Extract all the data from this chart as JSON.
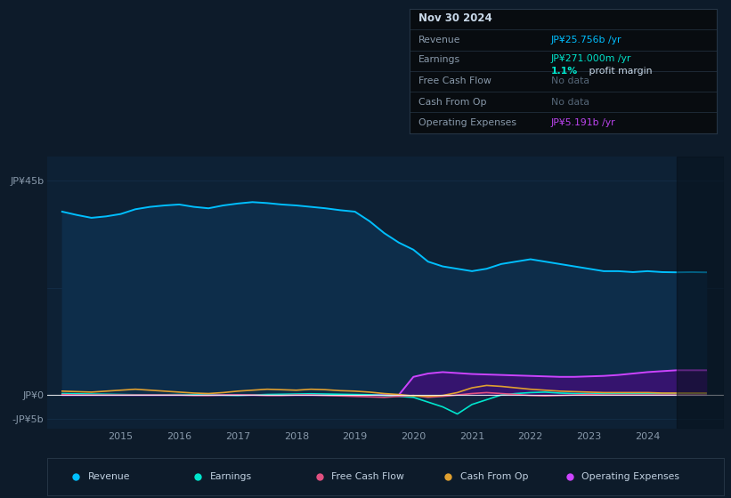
{
  "background_color": "#0d1b2a",
  "chart_area_color": "#0d2135",
  "title": "Nov 30 2024",
  "xlim_start": 2013.75,
  "xlim_end": 2025.3,
  "ylim_min": -7,
  "ylim_max": 50,
  "revenue_color": "#00bfff",
  "revenue_fill_color": "#0d2d4a",
  "earnings_color": "#00e5cc",
  "free_cash_flow_color": "#e05080",
  "cash_from_op_color": "#e0a030",
  "op_expenses_color": "#cc44ff",
  "op_expenses_fill_color": "#35146e",
  "text_color": "#8899aa",
  "grid_color": "#1a3a5a",
  "dark_overlay_start": 2024.5,
  "x_points": [
    2014.0,
    2014.25,
    2014.5,
    2014.75,
    2015.0,
    2015.25,
    2015.5,
    2015.75,
    2016.0,
    2016.25,
    2016.5,
    2016.75,
    2017.0,
    2017.25,
    2017.5,
    2017.75,
    2018.0,
    2018.25,
    2018.5,
    2018.75,
    2019.0,
    2019.25,
    2019.5,
    2019.75,
    2020.0,
    2020.25,
    2020.5,
    2020.75,
    2021.0,
    2021.25,
    2021.5,
    2021.75,
    2022.0,
    2022.25,
    2022.5,
    2022.75,
    2023.0,
    2023.25,
    2023.5,
    2023.75,
    2024.0,
    2024.25,
    2024.5,
    2024.75,
    2025.0
  ],
  "revenue": [
    38.5,
    37.8,
    37.2,
    37.5,
    38.0,
    39.0,
    39.5,
    39.8,
    40.0,
    39.5,
    39.2,
    39.8,
    40.2,
    40.5,
    40.3,
    40.0,
    39.8,
    39.5,
    39.2,
    38.8,
    38.5,
    36.5,
    34.0,
    32.0,
    30.5,
    28.0,
    27.0,
    26.5,
    26.0,
    26.5,
    27.5,
    28.0,
    28.5,
    28.0,
    27.5,
    27.0,
    26.5,
    26.0,
    26.0,
    25.8,
    26.0,
    25.8,
    25.756,
    25.8,
    25.756
  ],
  "earnings": [
    0.3,
    0.25,
    0.2,
    0.15,
    0.1,
    0.05,
    0.0,
    0.05,
    0.1,
    0.05,
    0.0,
    -0.05,
    -0.1,
    0.0,
    0.1,
    0.15,
    0.2,
    0.25,
    0.2,
    0.15,
    0.1,
    0.05,
    -0.1,
    -0.3,
    -0.5,
    -1.5,
    -2.5,
    -4.0,
    -2.0,
    -1.0,
    0.0,
    0.3,
    0.5,
    0.6,
    0.4,
    0.3,
    0.3,
    0.25,
    0.3,
    0.3,
    0.3,
    0.271,
    0.271,
    0.271,
    0.271
  ],
  "cash_from_op": [
    0.8,
    0.7,
    0.6,
    0.8,
    1.0,
    1.2,
    1.0,
    0.8,
    0.6,
    0.4,
    0.3,
    0.5,
    0.8,
    1.0,
    1.2,
    1.1,
    1.0,
    1.2,
    1.1,
    0.9,
    0.8,
    0.6,
    0.3,
    0.1,
    -0.2,
    -0.3,
    -0.1,
    0.5,
    1.5,
    2.0,
    1.8,
    1.5,
    1.2,
    1.0,
    0.8,
    0.7,
    0.6,
    0.5,
    0.5,
    0.5,
    0.5,
    0.4,
    0.4,
    0.4,
    0.4
  ],
  "free_cash_flow": [
    0.1,
    0.0,
    0.0,
    0.0,
    0.0,
    0.0,
    0.0,
    0.0,
    0.0,
    -0.1,
    -0.1,
    0.0,
    0.0,
    0.0,
    -0.1,
    -0.1,
    0.0,
    0.0,
    -0.1,
    -0.2,
    -0.3,
    -0.4,
    -0.5,
    -0.3,
    -0.1,
    -0.5,
    -0.3,
    0.0,
    0.3,
    0.5,
    0.3,
    0.1,
    -0.1,
    -0.2,
    -0.1,
    0.0,
    0.1,
    0.0,
    0.0,
    0.0,
    0.0,
    0.0,
    0.0,
    0.0,
    0.0
  ],
  "op_expenses": [
    0.0,
    0.0,
    0.0,
    0.0,
    0.0,
    0.0,
    0.0,
    0.0,
    0.0,
    0.0,
    0.0,
    0.0,
    0.0,
    0.0,
    0.0,
    0.0,
    0.0,
    0.0,
    0.0,
    0.0,
    0.0,
    0.0,
    0.0,
    0.0,
    3.8,
    4.5,
    4.8,
    4.6,
    4.4,
    4.3,
    4.2,
    4.1,
    4.0,
    3.9,
    3.8,
    3.8,
    3.9,
    4.0,
    4.2,
    4.5,
    4.8,
    5.0,
    5.191,
    5.191,
    5.191
  ],
  "xtick_years": [
    2015,
    2016,
    2017,
    2018,
    2019,
    2020,
    2021,
    2022,
    2023,
    2024
  ],
  "ytick_vals": [
    45,
    22.5,
    0,
    -5
  ],
  "ytick_labels": [
    "JP¥45b",
    "",
    "JP¥0",
    "-JP¥5b"
  ]
}
